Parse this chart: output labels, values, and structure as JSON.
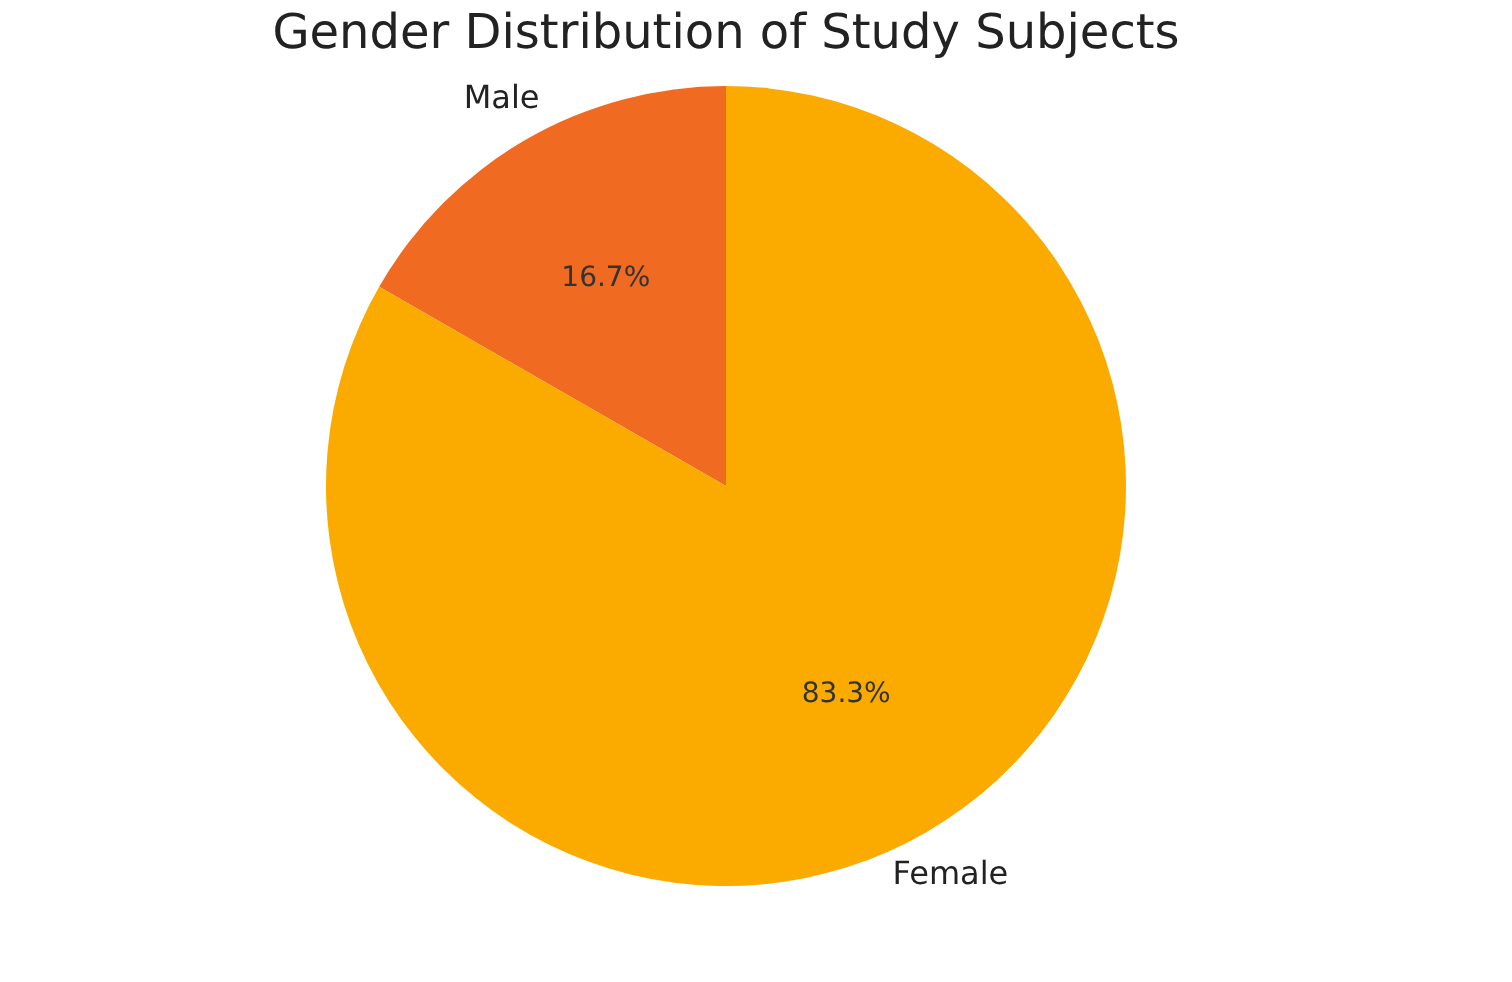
{
  "chart_data": {
    "type": "pie",
    "title": "Gender Distribution of Study Subjects",
    "categories": [
      "Male",
      "Female"
    ],
    "values": [
      16.7,
      83.3
    ],
    "colors": [
      "#f06a22",
      "#fbab00"
    ],
    "value_labels": [
      "16.7%",
      "83.3%"
    ],
    "legend": false
  }
}
